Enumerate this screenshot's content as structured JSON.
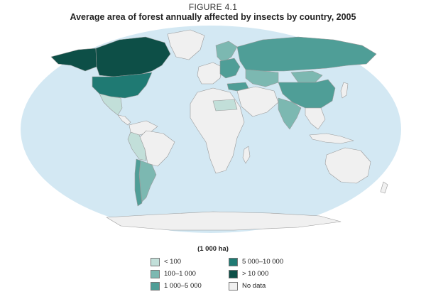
{
  "figure": {
    "label": "FIGURE 4.1",
    "title": "Average area of forest annually affected by insects by country, 2005"
  },
  "colors": {
    "ocean": "#d3e8f3",
    "no_data": "#f0f0f0",
    "border": "#9a9a9a",
    "lt100": "#c2dfd9",
    "c100_1000": "#7cb8b1",
    "c1000_5000": "#4f9e97",
    "c5000_10000": "#1f7a73",
    "gt10000": "#0d4f47"
  },
  "legend": {
    "title": "(1 000 ha)",
    "items": [
      {
        "label": "< 100",
        "color": "#c2dfd9"
      },
      {
        "label": "100–1 000",
        "color": "#7cb8b1"
      },
      {
        "label": "1 000–5 000",
        "color": "#4f9e97"
      },
      {
        "label": "5 000–10 000",
        "color": "#1f7a73"
      },
      {
        "label": "> 10 000",
        "color": "#0d4f47"
      },
      {
        "label": "No data",
        "color": "#f0f0f0"
      }
    ]
  },
  "regions": [
    {
      "name": "canada",
      "cls": "gt10000"
    },
    {
      "name": "united-states",
      "cls": "c5000_10000"
    },
    {
      "name": "alaska",
      "cls": "gt10000"
    },
    {
      "name": "greenland",
      "cls": "no_data"
    },
    {
      "name": "mexico",
      "cls": "lt100"
    },
    {
      "name": "central-america",
      "cls": "no_data"
    },
    {
      "name": "south-america-north",
      "cls": "no_data"
    },
    {
      "name": "brazil",
      "cls": "no_data"
    },
    {
      "name": "peru-bolivia",
      "cls": "lt100"
    },
    {
      "name": "argentina",
      "cls": "c100_1000"
    },
    {
      "name": "chile",
      "cls": "c1000_5000"
    },
    {
      "name": "europe-west",
      "cls": "no_data"
    },
    {
      "name": "europe-central",
      "cls": "c1000_5000"
    },
    {
      "name": "scandinavia",
      "cls": "c100_1000"
    },
    {
      "name": "russia",
      "cls": "c1000_5000"
    },
    {
      "name": "kazakhstan",
      "cls": "c100_1000"
    },
    {
      "name": "mongolia",
      "cls": "c100_1000"
    },
    {
      "name": "china",
      "cls": "c1000_5000"
    },
    {
      "name": "india",
      "cls": "c100_1000"
    },
    {
      "name": "middle-east",
      "cls": "no_data"
    },
    {
      "name": "turkey",
      "cls": "c1000_5000"
    },
    {
      "name": "africa",
      "cls": "no_data"
    },
    {
      "name": "africa-sahel",
      "cls": "lt100"
    },
    {
      "name": "southeast-asia",
      "cls": "no_data"
    },
    {
      "name": "japan",
      "cls": "no_data"
    },
    {
      "name": "indonesia",
      "cls": "no_data"
    },
    {
      "name": "australia",
      "cls": "no_data"
    },
    {
      "name": "new-zealand",
      "cls": "no_data"
    },
    {
      "name": "madagascar",
      "cls": "no_data"
    },
    {
      "name": "antarctica",
      "cls": "no_data"
    }
  ]
}
